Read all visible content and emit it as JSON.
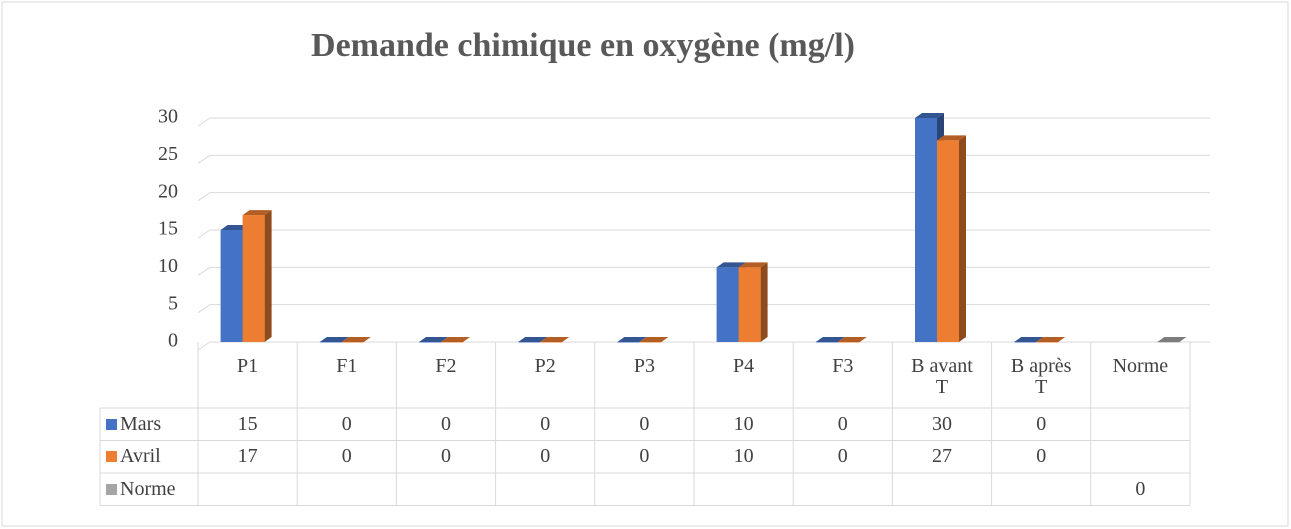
{
  "chart_data": {
    "type": "bar3d",
    "title": "Demande chimique en oxygène (mg/l)",
    "categories": [
      "P1",
      "F1",
      "F2",
      "P2",
      "P3",
      "P4",
      "F3",
      "B avant T",
      "B après T",
      "Norme"
    ],
    "series": [
      {
        "name": "Mars",
        "color": "#4472c4",
        "values": [
          15,
          0,
          0,
          0,
          0,
          10,
          0,
          30,
          0,
          null
        ]
      },
      {
        "name": "Avril",
        "color": "#ed7d31",
        "values": [
          17,
          0,
          0,
          0,
          0,
          10,
          0,
          27,
          0,
          null
        ]
      },
      {
        "name": "Norme",
        "color": "#a5a5a5",
        "values": [
          null,
          null,
          null,
          null,
          null,
          null,
          null,
          null,
          null,
          0
        ]
      }
    ],
    "ylim": [
      0,
      30
    ],
    "yticks": [
      0,
      5,
      10,
      15,
      20,
      25,
      30
    ],
    "grid": true,
    "data_table": true
  }
}
